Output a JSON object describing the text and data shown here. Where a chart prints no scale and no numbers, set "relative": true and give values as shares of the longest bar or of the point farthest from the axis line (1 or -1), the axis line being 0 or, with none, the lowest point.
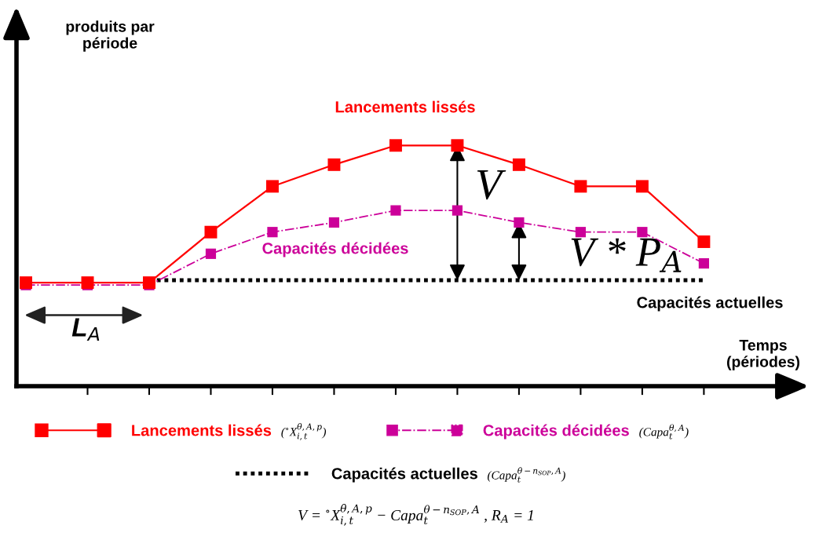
{
  "chart_data": {
    "type": "line",
    "relative": true,
    "tick_labels": false,
    "grid": false,
    "legend": "bottom",
    "xlabel": "Temps\n(périodes)",
    "categories": [
      null,
      null,
      null,
      null,
      null,
      null,
      null,
      null,
      null,
      null,
      null,
      null
    ],
    "series": [
      {
        "name": "Lancements lissés",
        "color": "#ff0000",
        "marker": "square",
        "line_style": "solid",
        "values": [
          0.43,
          0.43,
          0.43,
          0.64,
          0.83,
          0.92,
          1,
          1,
          0.92,
          0.83,
          0.83,
          0.6
        ]
      },
      {
        "name": "Capacités décidées",
        "color": "#cc0099",
        "marker": "square",
        "line_style": "dashed",
        "values": [
          0.42,
          0.42,
          0.42,
          0.55,
          0.64,
          0.68,
          0.73,
          0.73,
          0.68,
          0.64,
          0.64,
          0.51
        ]
      },
      {
        "name": "Capacités actuelles",
        "color": "#000000",
        "marker": "none",
        "line_style": "dotted",
        "values": [
          null,
          null,
          0.44,
          0.44,
          0.44,
          0.44,
          0.44,
          0.44,
          0.44,
          0.44,
          0.44,
          0.44
        ]
      }
    ],
    "annotations": [
      "V",
      "V * P$_{A}$",
      "L$_{A}$",
      "($^{∘}$X$^{θ,A,p}$$_{i,t}$)",
      "(Capa$^{θ,A}$$_{t}$)",
      "(Capa$^{θ−n}$$_{SOP}$$^{,A}$$_{t}$)",
      "V = $^{∘}$X$^{θ,A,p}$$_{i,t}$ − Capa$^{θ−n}$$_{SOP}$$^{,A}$$_{t}$ , R$_{A}$ = 1",
      "produits par\npériode"
    ]
  }
}
